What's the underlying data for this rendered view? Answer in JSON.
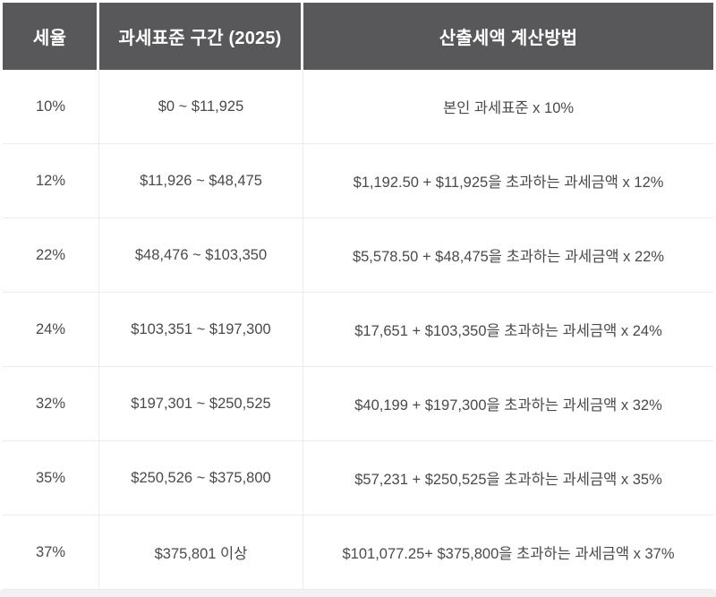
{
  "chart_data": {
    "type": "table",
    "title": "",
    "columns": [
      "세율",
      "과세표준 구간 (2025)",
      "산출세액 계산방법"
    ],
    "rows": [
      [
        "10%",
        "$0 ~ $11,925",
        "본인 과세표준 x 10%"
      ],
      [
        "12%",
        "$11,926 ~ $48,475",
        "$1,192.50 + $11,925을 초과하는 과세금액 x 12%"
      ],
      [
        "22%",
        "$48,476 ~ $103,350",
        "$5,578.50 + $48,475을 초과하는 과세금액 x 22%"
      ],
      [
        "24%",
        "$103,351 ~ $197,300",
        "$17,651 + $103,350을 초과하는 과세금액 x 24%"
      ],
      [
        "32%",
        "$197,301 ~ $250,525",
        "$40,199 + $197,300을 초과하는 과세금액 x 32%"
      ],
      [
        "35%",
        "$250,526 ~ $375,800",
        "$57,231 + $250,525을 초과하는 과세금액 x 35%"
      ],
      [
        "37%",
        "$375,801 이상",
        "$101,077.25+ $375,800을 초과하는 과세금액 x 37%"
      ]
    ]
  },
  "colors": {
    "header_bg": "#58585a",
    "header_text": "#ffffff",
    "body_text": "#4a4a4a",
    "border": "#ececec",
    "footer_strip": "#f1f1f1"
  }
}
